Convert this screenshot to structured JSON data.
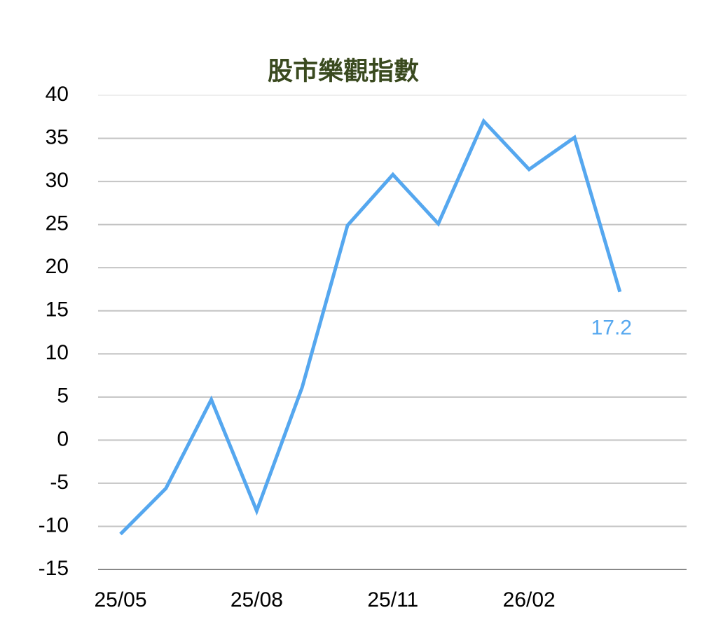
{
  "chart_data": {
    "type": "line",
    "title": "股市樂觀指數",
    "categories": [
      "25/05",
      null,
      null,
      "25/08",
      null,
      null,
      "25/11",
      null,
      null,
      "26/02",
      null,
      null
    ],
    "series": [
      {
        "color": "#55a7ef",
        "values": [
          -10.9,
          -5.6,
          4.7,
          -8.2,
          6.1,
          24.9,
          30.8,
          25.1,
          37.0,
          31.4,
          35.1,
          17.2
        ]
      }
    ],
    "ylim": [
      -15,
      40
    ],
    "yticks": [
      -15,
      -10,
      -5,
      0,
      5,
      10,
      15,
      20,
      25,
      30,
      35,
      40
    ],
    "grid": true
  }
}
